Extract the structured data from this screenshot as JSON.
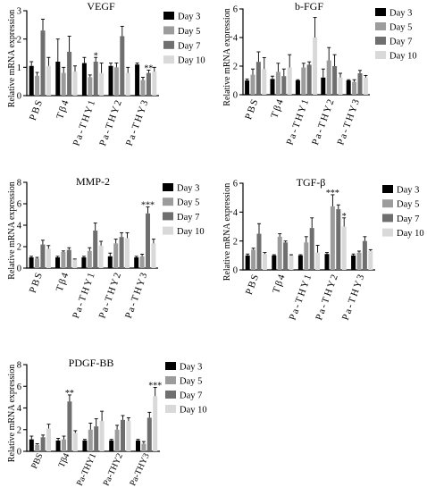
{
  "chart_data": [
    {
      "type": "bar",
      "title": "VEGF",
      "ylabel": "Relative mRNA expression",
      "categories": [
        "PBS",
        "Tβ4",
        "Pa-THY1",
        "Pa-THY2",
        "Pa-THY3"
      ],
      "ylim": [
        0,
        3
      ],
      "yticks": [
        0,
        1,
        2,
        3
      ],
      "legend": "right",
      "series": [
        {
          "name": "Day 3",
          "color": "#000000",
          "values": [
            1.05,
            1.2,
            1.15,
            1.05,
            1.1
          ],
          "errors": [
            0.15,
            0.8,
            0.2,
            0.1,
            0.05
          ]
        },
        {
          "name": "Day 5",
          "color": "#9c9c9c",
          "values": [
            0.7,
            0.8,
            0.65,
            1.0,
            0.55
          ],
          "errors": [
            0.12,
            0.2,
            0.08,
            0.15,
            0.1
          ]
        },
        {
          "name": "Day 7",
          "color": "#6f6f6f",
          "values": [
            2.3,
            1.55,
            1.2,
            2.1,
            0.8
          ],
          "errors": [
            0.4,
            0.55,
            0.15,
            0.35,
            0.1
          ]
        },
        {
          "name": "Day 10",
          "color": "#d9d9d9",
          "values": [
            1.05,
            0.85,
            0.8,
            0.8,
            0.85
          ],
          "errors": [
            0.3,
            0.2,
            0.35,
            0.2,
            0.15
          ]
        }
      ],
      "annotations": [
        {
          "category": "Pa-THY1",
          "series": "Day 7",
          "text": "*"
        },
        {
          "category": "Pa-THY3",
          "series": "Day 7",
          "text": "**"
        }
      ]
    },
    {
      "type": "bar",
      "title": "b-FGF",
      "ylabel": "Relative mRNA expression",
      "categories": [
        "PBS",
        "Tβ4",
        "Pa-THY1",
        "Pa-THY2",
        "Pa-THY3"
      ],
      "ylim": [
        0,
        6
      ],
      "yticks": [
        0,
        2,
        4,
        6
      ],
      "legend": "right",
      "series": [
        {
          "name": "Day 3",
          "color": "#000000",
          "values": [
            1.0,
            1.1,
            1.0,
            1.2,
            1.0
          ],
          "errors": [
            0.1,
            0.2,
            0.05,
            0.6,
            0.05
          ]
        },
        {
          "name": "Day 5",
          "color": "#9c9c9c",
          "values": [
            1.4,
            1.6,
            1.9,
            2.4,
            0.9
          ],
          "errors": [
            0.4,
            0.6,
            0.3,
            0.9,
            0.15
          ]
        },
        {
          "name": "Day 7",
          "color": "#6f6f6f",
          "values": [
            2.3,
            1.3,
            2.1,
            2.0,
            1.5
          ],
          "errors": [
            0.7,
            0.5,
            0.2,
            0.8,
            0.2
          ]
        },
        {
          "name": "Day 10",
          "color": "#d9d9d9",
          "values": [
            1.8,
            1.9,
            4.0,
            1.2,
            1.2
          ],
          "errors": [
            0.8,
            0.9,
            1.4,
            0.3,
            0.15
          ]
        }
      ],
      "annotations": []
    },
    {
      "type": "bar",
      "title": "MMP-2",
      "ylabel": "Relative mRNA expression",
      "categories": [
        "PBS",
        "Tβ4",
        "Pa-THY1",
        "Pa-THY2",
        "Pa-THY3"
      ],
      "ylim": [
        0,
        8
      ],
      "yticks": [
        0,
        2,
        4,
        6,
        8
      ],
      "legend": "right",
      "series": [
        {
          "name": "Day 3",
          "color": "#000000",
          "values": [
            1.0,
            1.0,
            1.0,
            1.1,
            1.0
          ],
          "errors": [
            0.1,
            0.1,
            0.1,
            0.3,
            0.1
          ]
        },
        {
          "name": "Day 5",
          "color": "#9c9c9c",
          "values": [
            0.9,
            1.5,
            1.6,
            2.3,
            1.1
          ],
          "errors": [
            0.1,
            0.1,
            0.3,
            0.4,
            0.2
          ]
        },
        {
          "name": "Day 7",
          "color": "#6f6f6f",
          "values": [
            2.2,
            1.7,
            3.5,
            2.9,
            5.1
          ],
          "errors": [
            0.4,
            0.2,
            0.7,
            0.4,
            0.6
          ]
        },
        {
          "name": "Day 10",
          "color": "#d9d9d9",
          "values": [
            1.8,
            0.8,
            2.1,
            2.8,
            2.3
          ],
          "errors": [
            0.3,
            0.05,
            0.4,
            0.5,
            0.4
          ]
        }
      ],
      "annotations": [
        {
          "category": "Pa-THY3",
          "series": "Day 7",
          "text": "***"
        }
      ]
    },
    {
      "type": "bar",
      "title": "TGF-β",
      "ylabel": "Relative mRNA expression",
      "categories": [
        "PBS",
        "Tβ4",
        "Pa-THY1",
        "Pa-THY2",
        "Pa-THY3"
      ],
      "ylim": [
        0,
        6
      ],
      "yticks": [
        0,
        2,
        4,
        6
      ],
      "legend": "right",
      "series": [
        {
          "name": "Day 3",
          "color": "#000000",
          "values": [
            1.0,
            1.0,
            1.0,
            1.1,
            1.0
          ],
          "errors": [
            0.1,
            0.05,
            0.05,
            0.1,
            0.1
          ]
        },
        {
          "name": "Day 5",
          "color": "#9c9c9c",
          "values": [
            1.4,
            2.3,
            1.9,
            4.4,
            1.2
          ],
          "errors": [
            0.1,
            0.2,
            0.4,
            0.8,
            0.1
          ]
        },
        {
          "name": "Day 7",
          "color": "#6f6f6f",
          "values": [
            2.5,
            1.9,
            2.9,
            4.2,
            2.0
          ],
          "errors": [
            0.7,
            0.1,
            0.7,
            0.3,
            0.3
          ]
        },
        {
          "name": "Day 10",
          "color": "#d9d9d9",
          "values": [
            1.1,
            1.0,
            1.2,
            3.0,
            1.3
          ],
          "errors": [
            0.1,
            0.05,
            0.5,
            0.6,
            0.1
          ]
        }
      ],
      "annotations": [
        {
          "category": "Pa-THY2",
          "series": "Day 5",
          "text": "***"
        },
        {
          "category": "Pa-THY2",
          "series": "Day 10",
          "text": "*"
        }
      ]
    },
    {
      "type": "bar",
      "title": "PDGF-BB",
      "ylabel": "Relative mRNA expression",
      "categories": [
        "PBS",
        "Tβ4",
        "Pa-THY1",
        "Pa-THY2",
        "Pa-THY3"
      ],
      "ylim": [
        0,
        8
      ],
      "yticks": [
        0,
        2,
        4,
        6,
        8
      ],
      "legend": "right",
      "series": [
        {
          "name": "Day 3",
          "color": "#000000",
          "values": [
            1.1,
            1.0,
            1.0,
            1.0,
            1.0
          ],
          "errors": [
            0.3,
            0.2,
            0.1,
            0.1,
            0.1
          ]
        },
        {
          "name": "Day 5",
          "color": "#9c9c9c",
          "values": [
            0.6,
            1.1,
            2.0,
            2.0,
            0.7
          ],
          "errors": [
            0.1,
            0.3,
            0.6,
            0.4,
            0.2
          ]
        },
        {
          "name": "Day 7",
          "color": "#6f6f6f",
          "values": [
            1.3,
            4.6,
            2.3,
            2.9,
            3.1
          ],
          "errors": [
            0.2,
            0.6,
            0.7,
            0.4,
            0.5
          ]
        },
        {
          "name": "Day 10",
          "color": "#d9d9d9",
          "values": [
            2.1,
            1.7,
            2.8,
            2.8,
            5.1
          ],
          "errors": [
            0.4,
            0.2,
            0.9,
            0.3,
            0.8
          ]
        }
      ],
      "annotations": [
        {
          "category": "Tβ4",
          "series": "Day 7",
          "text": "**"
        },
        {
          "category": "Pa-THY3",
          "series": "Day 10",
          "text": "***"
        }
      ]
    }
  ]
}
